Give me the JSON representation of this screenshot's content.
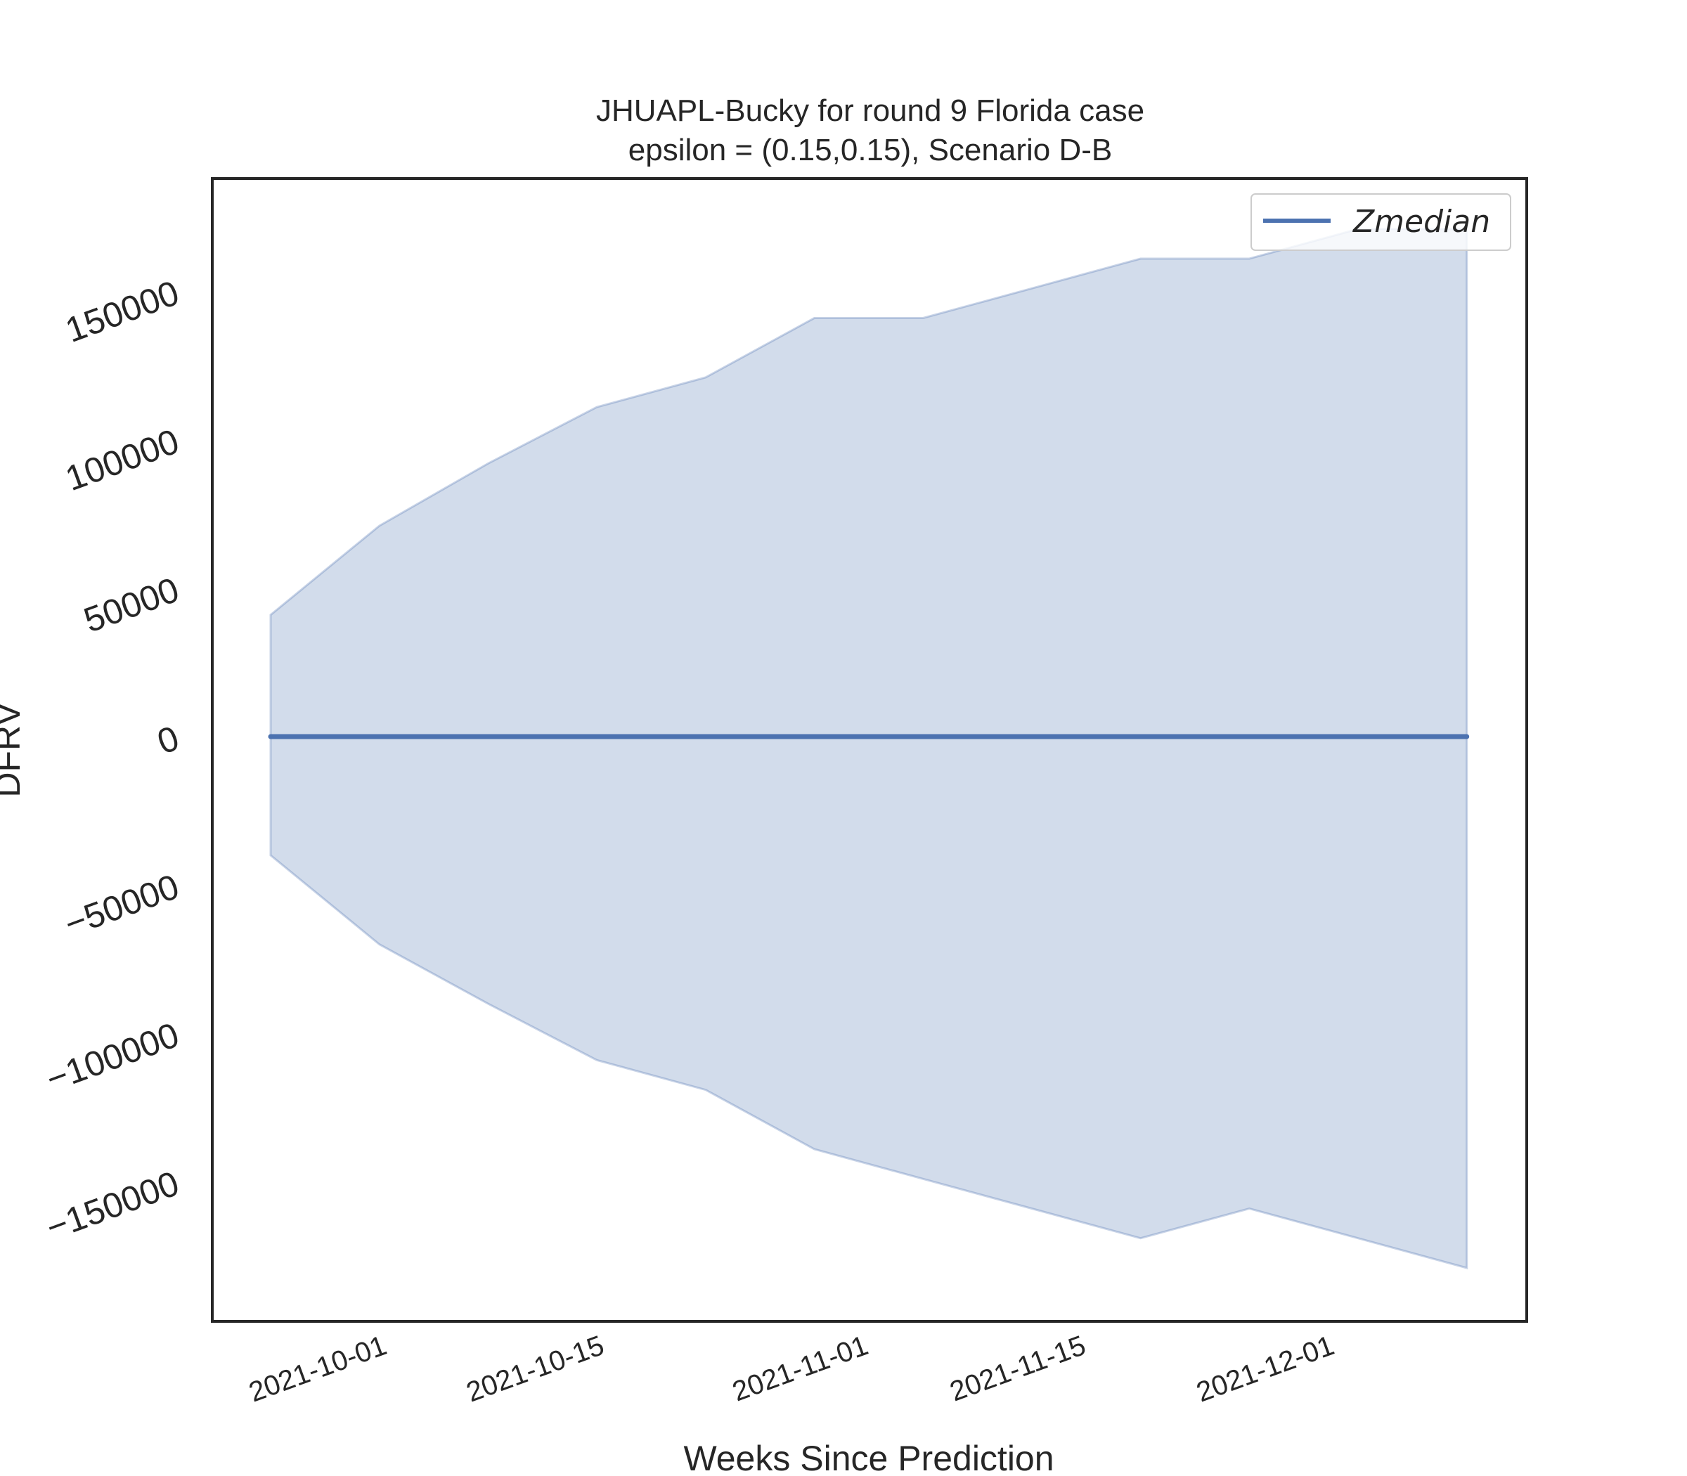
{
  "chart_data": {
    "type": "area",
    "title": "JHUAPL-Bucky for round 9 Florida  case",
    "subtitle": "epsilon = (0.15,0.15), Scenario D-B",
    "xlabel": "Weeks Since Prediction",
    "ylabel": "DFRV",
    "x": [
      "2021-09-25",
      "2021-10-02",
      "2021-10-09",
      "2021-10-16",
      "2021-10-23",
      "2021-10-30",
      "2021-11-06",
      "2021-11-13",
      "2021-11-20",
      "2021-11-27",
      "2021-12-04",
      "2021-12-11"
    ],
    "x_ticks": [
      "2021-10-01",
      "2021-10-15",
      "2021-11-01",
      "2021-11-15",
      "2021-12-01"
    ],
    "y_ticks": [
      150000,
      100000,
      50000,
      0,
      -50000,
      -100000,
      -150000
    ],
    "y_tick_labels": [
      "150000",
      "100000",
      "50000",
      "0",
      "−50000",
      "−100000",
      "−150000"
    ],
    "ylim": [
      -197000,
      188000
    ],
    "series": [
      {
        "name": "Zmedian",
        "values": [
          0,
          0,
          0,
          0,
          0,
          0,
          0,
          0,
          0,
          0,
          0,
          0
        ]
      }
    ],
    "band": {
      "upper": [
        41000,
        71000,
        92000,
        111000,
        121000,
        141000,
        141000,
        151000,
        161000,
        161000,
        171000,
        171000
      ],
      "lower": [
        -40000,
        -70000,
        -90000,
        -109000,
        -119000,
        -139000,
        -149000,
        -159000,
        -169000,
        -159000,
        -169000,
        -179000
      ]
    },
    "legend": {
      "position": "top-right",
      "entries": [
        "Zmedian"
      ]
    },
    "grid": false,
    "colors": {
      "line": "#4c72b0",
      "band": "#4c72b0",
      "axes": "#262626"
    }
  }
}
